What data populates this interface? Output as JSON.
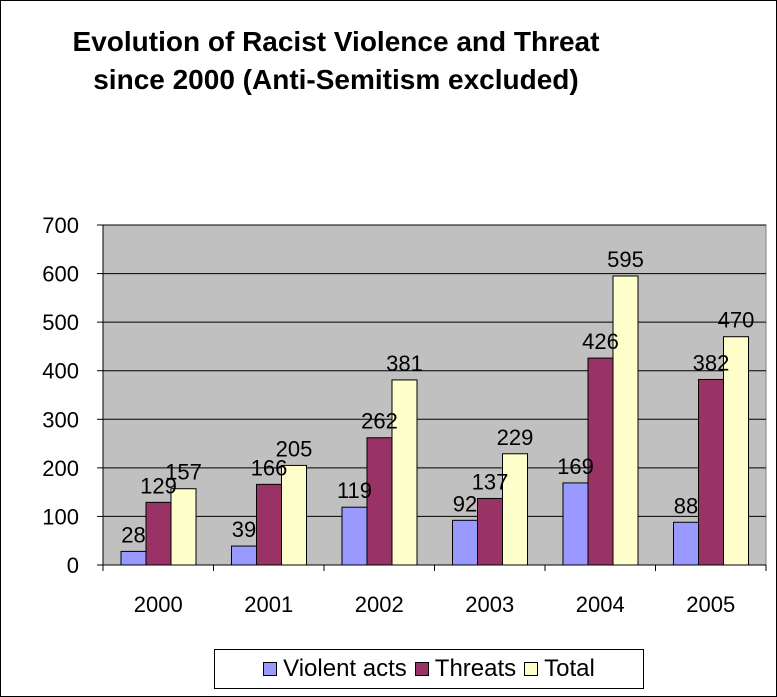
{
  "chart_data": {
    "type": "bar",
    "title": "Evolution of Racist Violence and Threat since 2000 (Anti-Semitism excluded)",
    "xlabel": "",
    "ylabel": "",
    "categories": [
      "2000",
      "2001",
      "2002",
      "2003",
      "2004",
      "2005"
    ],
    "series": [
      {
        "name": "Violent acts",
        "values": [
          28,
          39,
          119,
          92,
          169,
          88
        ],
        "color": "#9999ff"
      },
      {
        "name": "Threats",
        "values": [
          129,
          166,
          262,
          137,
          426,
          382
        ],
        "color": "#993366"
      },
      {
        "name": "Total",
        "values": [
          157,
          205,
          381,
          229,
          595,
          470
        ],
        "color": "#ffffcc"
      }
    ],
    "ylim": [
      0,
      700
    ],
    "yticks": [
      "0",
      "100",
      "200",
      "300",
      "400",
      "500",
      "600",
      "700"
    ],
    "grid": true,
    "plot_background": "#c0c0c0",
    "legend_position": "bottom",
    "data_labels": true
  }
}
